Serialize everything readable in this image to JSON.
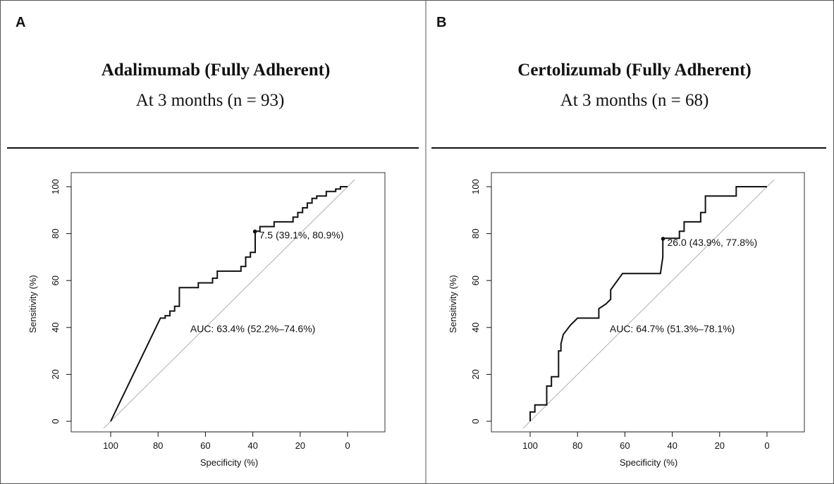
{
  "panels": [
    {
      "letter": "A",
      "title": "Adalimumab (Fully Adherent)",
      "subtitle": "At 3 months (n = 93)"
    },
    {
      "letter": "B",
      "title": "Certolizumab (Fully Adherent)",
      "subtitle": "At 3 months (n = 68)"
    }
  ],
  "colors": {
    "roc_line": "#111111",
    "diagonal": "#b0b0b0",
    "frame": "#333333"
  },
  "chart_data": [
    {
      "type": "line",
      "title": "",
      "xlabel": "Specificity (%)",
      "ylabel": "Sensitivity (%)",
      "x_reversed": true,
      "xlim": [
        114,
        -12
      ],
      "ylim": [
        -3,
        103
      ],
      "x_ticks": [
        100,
        80,
        60,
        40,
        20,
        0
      ],
      "y_ticks": [
        0,
        20,
        40,
        60,
        80,
        100
      ],
      "grid": false,
      "series": [
        {
          "x": [
            100,
            79,
            77,
            77,
            75,
            75,
            73,
            73,
            71,
            71,
            63,
            63,
            57,
            57,
            55,
            55,
            45,
            45,
            43,
            43,
            41,
            41,
            39,
            39,
            37,
            37,
            31,
            31,
            23,
            23,
            21,
            21,
            19,
            19,
            17,
            17,
            15,
            15,
            13,
            13,
            9,
            9,
            5,
            5,
            3,
            3,
            0
          ],
          "y": [
            0,
            44,
            44,
            45,
            45,
            47,
            47,
            49,
            49,
            57,
            57,
            59,
            59,
            61,
            61,
            64,
            64,
            66,
            66,
            70,
            70,
            72,
            72,
            81,
            81,
            83,
            83,
            85,
            85,
            87,
            87,
            89,
            89,
            91,
            91,
            93,
            93,
            95,
            95,
            96,
            96,
            98,
            98,
            99,
            99,
            100,
            100
          ]
        }
      ],
      "reference_line": "diagonal",
      "threshold_point": {
        "x": 39.1,
        "y": 80.9,
        "label": "7.5 (39.1%, 80.9%)"
      },
      "annotation": "AUC: 63.4% (52.2%–74.6%)"
    },
    {
      "type": "line",
      "title": "",
      "xlabel": "Specificity (%)",
      "ylabel": "Sensitivity (%)",
      "x_reversed": true,
      "xlim": [
        114,
        -12
      ],
      "ylim": [
        -3,
        103
      ],
      "x_ticks": [
        100,
        80,
        60,
        40,
        20,
        0
      ],
      "y_ticks": [
        0,
        20,
        40,
        60,
        80,
        100
      ],
      "grid": false,
      "series": [
        {
          "x": [
            100,
            100,
            98,
            98,
            93,
            93,
            91,
            91,
            88,
            88,
            87,
            87,
            86,
            83,
            80,
            71,
            71,
            68,
            66,
            66,
            61,
            45,
            44,
            44,
            37,
            37,
            35,
            35,
            28,
            28,
            26,
            26,
            13,
            13,
            0
          ],
          "y": [
            0,
            4,
            4,
            7,
            7,
            15,
            15,
            19,
            19,
            30,
            30,
            33,
            37,
            41,
            44,
            44,
            48,
            50,
            52,
            56,
            63,
            63,
            70,
            78,
            78,
            81,
            81,
            85,
            85,
            89,
            89,
            96,
            96,
            100,
            100
          ]
        }
      ],
      "reference_line": "diagonal",
      "threshold_point": {
        "x": 43.9,
        "y": 77.8,
        "label": "26.0 (43.9%, 77.8%)"
      },
      "annotation": "AUC: 64.7% (51.3%–78.1%)"
    }
  ]
}
